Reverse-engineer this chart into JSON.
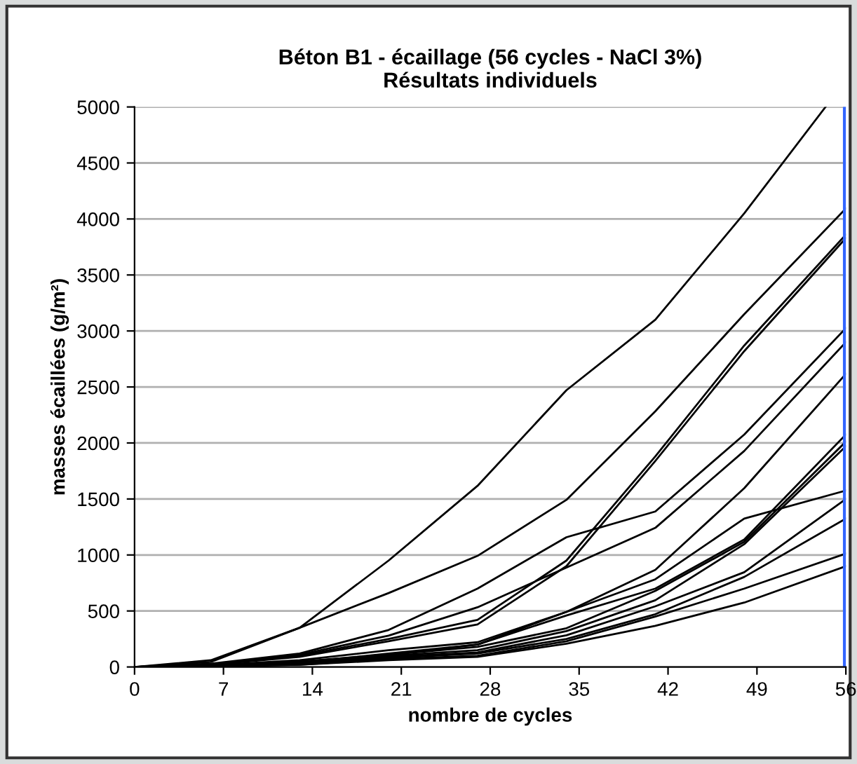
{
  "chart_data": {
    "type": "line",
    "title": "Béton B1 - écaillage (56 cycles - NaCl 3%)\nRésultats individuels",
    "xlabel": "nombre de cycles",
    "ylabel": "masses écaillées (g/m²)",
    "x": [
      0,
      6,
      13,
      20,
      27,
      34,
      41,
      48,
      56
    ],
    "series": [
      {
        "color": "#000000",
        "x": [
          0,
          6,
          13,
          20,
          27,
          34,
          41,
          48,
          54.4
        ],
        "values": [
          0,
          60,
          350,
          950,
          1617,
          2471,
          3100,
          4050,
          5000
        ]
      },
      {
        "color": "#000000",
        "values": [
          0,
          45,
          350,
          660,
          992,
          1492,
          2283,
          3150,
          4094
        ]
      },
      {
        "color": "#000000",
        "values": [
          0,
          20,
          100,
          250,
          420,
          950,
          1880,
          2870,
          3860
        ]
      },
      {
        "color": "#000000",
        "values": [
          0,
          20,
          90,
          230,
          380,
          900,
          1840,
          2820,
          3830
        ]
      },
      {
        "color": "#000000",
        "values": [
          0,
          30,
          120,
          330,
          700,
          1158,
          1388,
          2075,
          3025
        ]
      },
      {
        "color": "#000000",
        "values": [
          0,
          25,
          110,
          280,
          533,
          888,
          1242,
          1929,
          2900
        ]
      },
      {
        "color": "#000000",
        "values": [
          0,
          15,
          50,
          110,
          200,
          492,
          867,
          1596,
          2617
        ]
      },
      {
        "color": "#000000",
        "values": [
          0,
          15,
          60,
          150,
          221,
          492,
          783,
          1325,
          1575
        ]
      },
      {
        "color": "#000000",
        "values": [
          0,
          10,
          40,
          120,
          200,
          460,
          700,
          1138,
          2075
        ]
      },
      {
        "color": "#000000",
        "values": [
          0,
          10,
          35,
          110,
          179,
          346,
          679,
          1117,
          2012
        ]
      },
      {
        "color": "#000000",
        "values": [
          0,
          10,
          30,
          100,
          150,
          320,
          596,
          1096,
          1971
        ]
      },
      {
        "color": "#000000",
        "values": [
          0,
          8,
          30,
          90,
          130,
          283,
          542,
          846,
          1500
        ]
      },
      {
        "color": "#000000",
        "values": [
          0,
          8,
          25,
          80,
          120,
          250,
          471,
          804,
          1325
        ]
      },
      {
        "color": "#000000",
        "values": [
          0,
          5,
          20,
          70,
          100,
          230,
          450,
          700,
          1012
        ]
      },
      {
        "color": "#000000",
        "values": [
          0,
          5,
          20,
          60,
          90,
          208,
          367,
          575,
          900
        ]
      }
    ],
    "xlim": [
      0,
      56
    ],
    "ylim": [
      0,
      5000
    ],
    "xticks": [
      0,
      7,
      14,
      21,
      28,
      35,
      42,
      49,
      56
    ],
    "yticks": [
      0,
      500,
      1000,
      1500,
      2000,
      2500,
      3000,
      3500,
      4000,
      4500,
      5000
    ],
    "grid": "y",
    "marker": "none",
    "line_style": "solid",
    "ref_lines": [
      {
        "axis": "x",
        "value": 56,
        "color": "#3366ff"
      }
    ]
  }
}
